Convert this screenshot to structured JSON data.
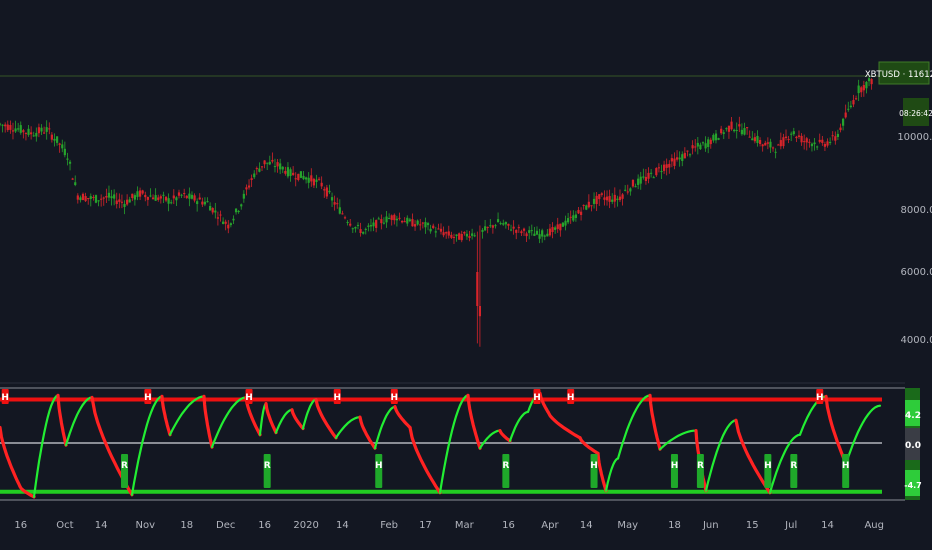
{
  "colors": {
    "background": "#131722",
    "up": "#26a32c",
    "down": "#d8242a",
    "indicator_up": "#22ee33",
    "indicator_down": "#ff2222",
    "upper_line": "#ee1111",
    "lower_line": "#22cc22",
    "mid_line": "#8a8d95",
    "badge": "#1f4a14",
    "resistance": "#2e4a25"
  },
  "header": {
    "price_badge": "XBTUSD · 11612.5",
    "timer_badge": "08:26:42"
  },
  "chart_data": [
    {
      "type": "candlestick",
      "title": "",
      "y_axis_ticks": [
        {
          "value": 10000,
          "label": "10000.0"
        },
        {
          "value": 8000,
          "label": "8000.0"
        },
        {
          "value": 6000,
          "label": "6000.0"
        },
        {
          "value": 4000,
          "label": "4000.0"
        }
      ],
      "ylim": [
        3500,
        11700
      ],
      "resistance_level": 11612.5,
      "x_range_days": [
        0,
        317
      ],
      "price_path": [
        [
          0,
          10350
        ],
        [
          6,
          10250
        ],
        [
          12,
          10100
        ],
        [
          18,
          10200
        ],
        [
          22,
          9900
        ],
        [
          26,
          9500
        ],
        [
          30,
          8400
        ],
        [
          36,
          8300
        ],
        [
          42,
          8350
        ],
        [
          48,
          8200
        ],
        [
          54,
          8450
        ],
        [
          60,
          8350
        ],
        [
          66,
          8250
        ],
        [
          70,
          8400
        ],
        [
          75,
          8300
        ],
        [
          80,
          8200
        ],
        [
          88,
          7500
        ],
        [
          93,
          8200
        ],
        [
          98,
          9000
        ],
        [
          102,
          9300
        ],
        [
          108,
          9200
        ],
        [
          112,
          9000
        ],
        [
          118,
          8900
        ],
        [
          124,
          8700
        ],
        [
          130,
          8100
        ],
        [
          136,
          7500
        ],
        [
          140,
          7300
        ],
        [
          146,
          7600
        ],
        [
          152,
          7800
        ],
        [
          158,
          7600
        ],
        [
          164,
          7500
        ],
        [
          170,
          7300
        ],
        [
          176,
          7100
        ],
        [
          180,
          7200
        ],
        [
          186,
          7300
        ],
        [
          192,
          7600
        ],
        [
          198,
          7400
        ],
        [
          202,
          7300
        ],
        [
          208,
          7200
        ],
        [
          214,
          7350
        ],
        [
          220,
          7700
        ],
        [
          226,
          8100
        ],
        [
          232,
          8350
        ],
        [
          238,
          8300
        ],
        [
          244,
          8700
        ],
        [
          250,
          8900
        ],
        [
          256,
          9200
        ],
        [
          262,
          9400
        ],
        [
          268,
          9700
        ],
        [
          272,
          9800
        ],
        [
          278,
          10100
        ],
        [
          282,
          10300
        ],
        [
          288,
          10150
        ],
        [
          294,
          9800
        ],
        [
          300,
          9700
        ],
        [
          305,
          10150
        ],
        [
          310,
          9900
        ],
        [
          317,
          9800
        ]
      ],
      "candles_note": ""
    },
    {
      "type": "line",
      "title": "",
      "ylim": [
        -5.5,
        5.5
      ],
      "levels": {
        "upper": 4.2,
        "middle": 0.0,
        "lower": -4.7
      },
      "level_labels": {
        "upper": "4.2",
        "middle": "0.0",
        "lower": "-4.7"
      },
      "current_value": 4.2,
      "markers_top": [
        {
          "x": 2,
          "label": "H"
        },
        {
          "x": 57,
          "label": "H"
        },
        {
          "x": 96,
          "label": "H"
        },
        {
          "x": 130,
          "label": "H"
        },
        {
          "x": 152,
          "label": "H"
        },
        {
          "x": 207,
          "label": "H"
        },
        {
          "x": 220,
          "label": "H"
        },
        {
          "x": 316,
          "label": "H"
        }
      ],
      "markers_bottom": [
        {
          "x": 48,
          "label": "R"
        },
        {
          "x": 103,
          "label": "R"
        },
        {
          "x": 146,
          "label": "H"
        },
        {
          "x": 195,
          "label": "R"
        },
        {
          "x": 229,
          "label": "H"
        },
        {
          "x": 260,
          "label": "H"
        },
        {
          "x": 270,
          "label": "R"
        },
        {
          "x": 296,
          "label": "H"
        },
        {
          "x": 306,
          "label": "R"
        },
        {
          "x": 326,
          "label": "H"
        }
      ]
    }
  ],
  "x_axis": {
    "labels": [
      {
        "x": 8,
        "label": "16"
      },
      {
        "x": 25,
        "label": "Oct"
      },
      {
        "x": 39,
        "label": "14"
      },
      {
        "x": 56,
        "label": "Nov"
      },
      {
        "x": 72,
        "label": "18"
      },
      {
        "x": 87,
        "label": "Dec"
      },
      {
        "x": 102,
        "label": "16"
      },
      {
        "x": 118,
        "label": "2020"
      },
      {
        "x": 132,
        "label": "14"
      },
      {
        "x": 150,
        "label": "Feb"
      },
      {
        "x": 164,
        "label": "17"
      },
      {
        "x": 179,
        "label": "Mar"
      },
      {
        "x": 196,
        "label": "16"
      },
      {
        "x": 212,
        "label": "Apr"
      },
      {
        "x": 226,
        "label": "14"
      },
      {
        "x": 242,
        "label": "May"
      },
      {
        "x": 260,
        "label": "18"
      },
      {
        "x": 274,
        "label": "Jun"
      },
      {
        "x": 290,
        "label": "15"
      },
      {
        "x": 305,
        "label": "Jul"
      },
      {
        "x": 319,
        "label": "14"
      },
      {
        "x": 337,
        "label": "Aug"
      }
    ]
  }
}
